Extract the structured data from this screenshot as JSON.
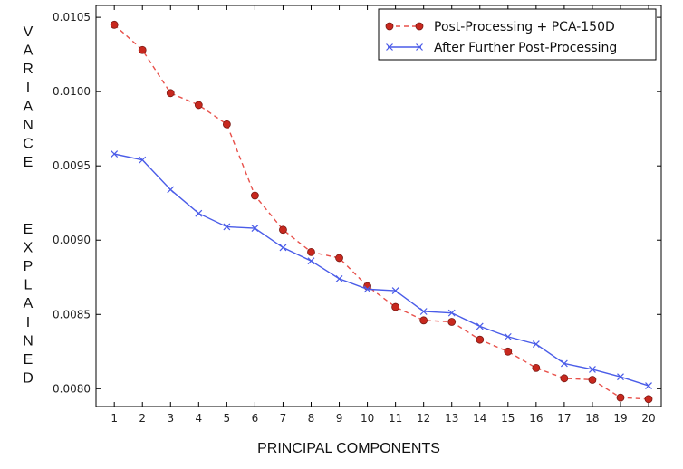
{
  "chart_data": {
    "type": "line",
    "title": "",
    "xlabel": "PRINCIPAL COMPONENTS",
    "ylabel": "VARIANCE EXPLAINED",
    "x": [
      1,
      2,
      3,
      4,
      5,
      6,
      7,
      8,
      9,
      10,
      11,
      12,
      13,
      14,
      15,
      16,
      17,
      18,
      19,
      20
    ],
    "xticks": [
      "1",
      "2",
      "3",
      "4",
      "5",
      "6",
      "7",
      "8",
      "9",
      "10",
      "11",
      "12",
      "13",
      "14",
      "15",
      "16",
      "17",
      "18",
      "19",
      "20"
    ],
    "yticks": [
      "0.0080",
      "0.0085",
      "0.0090",
      "0.0095",
      "0.0100",
      "0.0105"
    ],
    "yticks_values": [
      0.008,
      0.0085,
      0.009,
      0.0095,
      0.01,
      0.0105
    ],
    "xlim": [
      0.35,
      20.45
    ],
    "ylim": [
      0.00788,
      0.01058
    ],
    "grid": false,
    "legend_position": "top-right",
    "series": [
      {
        "name": "Post-Processing + PCA-150D",
        "color": "#e8504a",
        "marker_color": "#c8281e",
        "style": "dashed",
        "marker": "circle",
        "values": [
          0.01045,
          0.01028,
          0.00999,
          0.00991,
          0.00978,
          0.0093,
          0.00907,
          0.00892,
          0.00888,
          0.00869,
          0.00855,
          0.00846,
          0.00845,
          0.00833,
          0.00825,
          0.00814,
          0.00807,
          0.00806,
          0.00794,
          0.00793
        ]
      },
      {
        "name": "After Further Post-Processing",
        "color": "#4a5ce8",
        "style": "solid",
        "marker": "x",
        "values": [
          0.00958,
          0.00954,
          0.00934,
          0.00918,
          0.00909,
          0.00908,
          0.00895,
          0.00886,
          0.00874,
          0.00867,
          0.00866,
          0.00852,
          0.00851,
          0.00842,
          0.00835,
          0.0083,
          0.00817,
          0.00813,
          0.00808,
          0.00802
        ]
      }
    ]
  }
}
